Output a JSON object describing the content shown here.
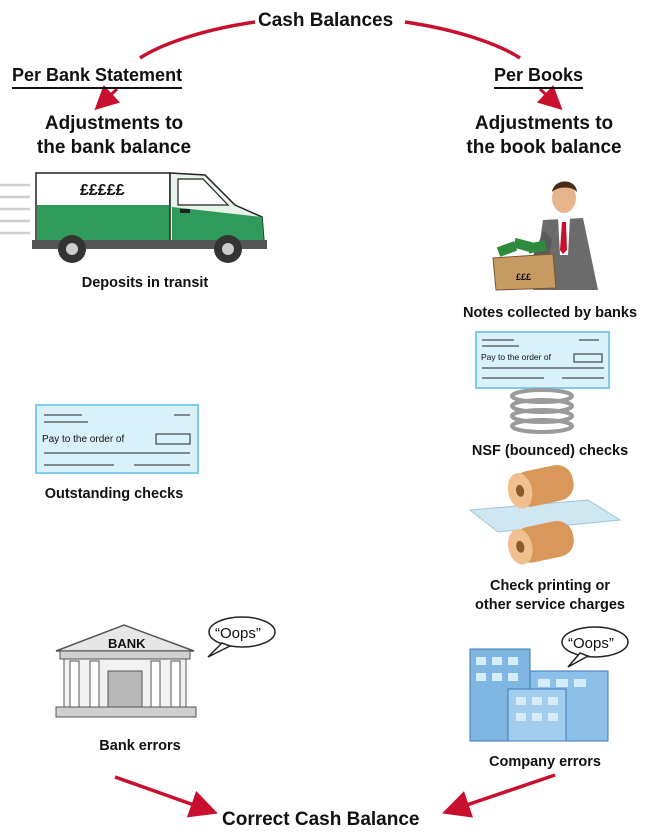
{
  "title": "Cash Balances",
  "left_header": "Per Bank Statement",
  "right_header": "Per Books",
  "left_adjust_line1": "Adjustments to",
  "left_adjust_line2": "the bank balance",
  "right_adjust_line1": "Adjustments to",
  "right_adjust_line2": "the book balance",
  "left_items": {
    "deposits": "Deposits in transit",
    "outstanding": "Outstanding checks",
    "bank_errors": "Bank errors"
  },
  "right_items": {
    "notes": "Notes collected by banks",
    "nsf": "NSF (bounced) checks",
    "service_line1": "Check printing or",
    "service_line2": "other service charges",
    "company_errors": "Company errors"
  },
  "van_text": "£££££",
  "box_text": "£££",
  "check_text": "Pay to the order of",
  "bank_sign": "BANK",
  "oops": "“Oops”",
  "bottom": "Correct Cash Balance",
  "colors": {
    "arrow": "#c8102e",
    "van_green": "#2f9a5a",
    "check_blue": "#d8f1fb"
  }
}
